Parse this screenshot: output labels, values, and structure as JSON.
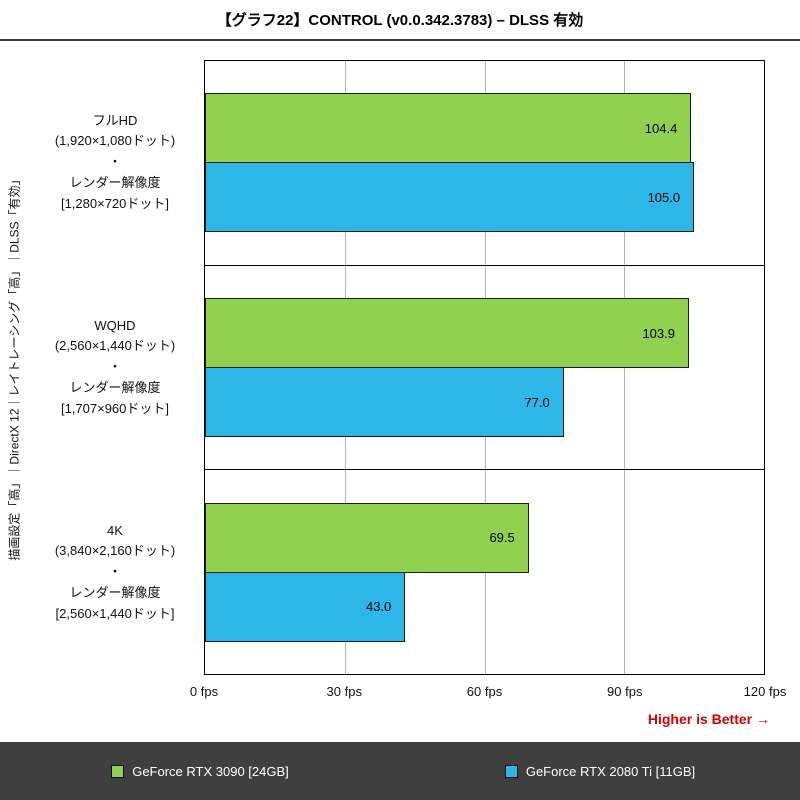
{
  "title": "【グラフ22】CONTROL (v0.0.342.3783) – DLSS 有効",
  "left_axis_label": "描画設定「高」｜DirectX 12｜レイトレーシング「高」｜DLSS「有効」",
  "footer": {
    "higher_is_better": "Higher is Better →"
  },
  "chart_data": {
    "type": "bar",
    "orientation": "horizontal",
    "title": "【グラフ22】CONTROL (v0.0.342.3783) – DLSS 有効",
    "unit": "fps",
    "xlim": [
      0,
      120
    ],
    "x_ticks": [
      "0 fps",
      "30 fps",
      "60 fps",
      "90 fps",
      "120 fps"
    ],
    "grid": true,
    "legend_position": "bottom",
    "higher_is_better": true,
    "categories": [
      [
        "フルHD",
        "(1,920×1,080ドット)",
        "・",
        "レンダー解像度",
        "[1,280×720ドット]"
      ],
      [
        "WQHD",
        "(2,560×1,440ドット)",
        "・",
        "レンダー解像度",
        "[1,707×960ドット]"
      ],
      [
        "4K",
        "(3,840×2,160ドット)",
        "・",
        "レンダー解像度",
        "[2,560×1,440ドット]"
      ]
    ],
    "series": [
      {
        "name": "GeForce RTX 3090 [24GB]",
        "color": "#92d050",
        "values": [
          104.4,
          103.9,
          69.5
        ]
      },
      {
        "name": "GeForce RTX 2080 Ti [11GB]",
        "color": "#2cb7e8",
        "values": [
          105.0,
          77.0,
          43.0
        ]
      }
    ]
  }
}
